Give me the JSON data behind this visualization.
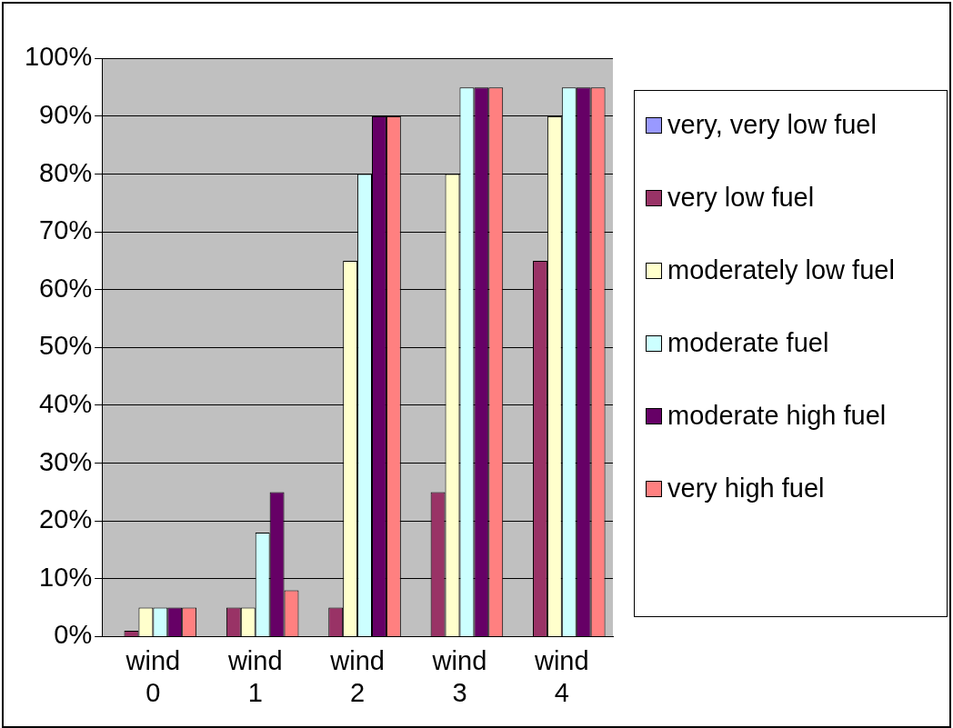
{
  "chart_data": {
    "type": "bar",
    "categories": [
      "wind 0",
      "wind 1",
      "wind 2",
      "wind 3",
      "wind 4"
    ],
    "series": [
      {
        "name": "very, very low fuel",
        "color": "#9999ff",
        "values": [
          0,
          0,
          0,
          0,
          0
        ]
      },
      {
        "name": "very low fuel",
        "color": "#993366",
        "values": [
          1,
          5,
          5,
          25,
          65
        ]
      },
      {
        "name": "moderately low fuel",
        "color": "#ffffcc",
        "values": [
          5,
          5,
          65,
          80,
          90
        ]
      },
      {
        "name": "moderate fuel",
        "color": "#ccffff",
        "values": [
          5,
          18,
          80,
          95,
          95
        ]
      },
      {
        "name": "moderate high fuel",
        "color": "#660066",
        "values": [
          5,
          25,
          90,
          95,
          95
        ]
      },
      {
        "name": "very high fuel",
        "color": "#ff8080",
        "values": [
          5,
          8,
          90,
          95,
          95
        ]
      }
    ],
    "ylim": [
      0,
      100
    ],
    "yticks": [
      {
        "value": 0,
        "label": "0%"
      },
      {
        "value": 10,
        "label": "10%"
      },
      {
        "value": 20,
        "label": "20%"
      },
      {
        "value": 30,
        "label": "30%"
      },
      {
        "value": 40,
        "label": "40%"
      },
      {
        "value": 50,
        "label": "50%"
      },
      {
        "value": 60,
        "label": "60%"
      },
      {
        "value": 70,
        "label": "70%"
      },
      {
        "value": 80,
        "label": "80%"
      },
      {
        "value": 90,
        "label": "90%"
      },
      {
        "value": 100,
        "label": "100%"
      }
    ],
    "grid": "y",
    "legend": "right"
  }
}
